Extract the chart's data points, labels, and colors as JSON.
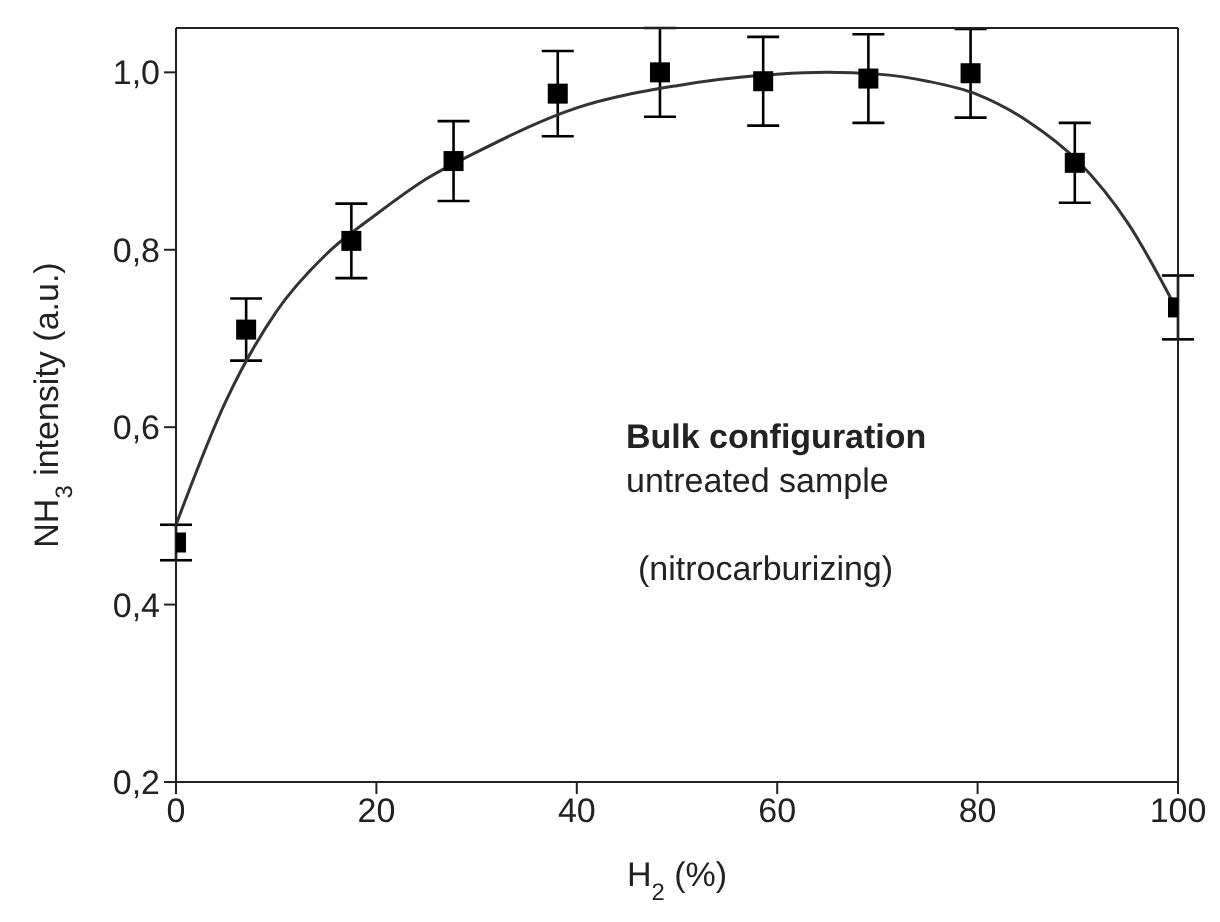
{
  "chart_data": {
    "type": "scatter",
    "xlabel": "H$_{2}$ (%)",
    "ylabel": "NH$_{3}$ intensity (a.u.)",
    "annotations": [
      "Bulk configuration",
      "untreated sample",
      "(nitrocarburizing)"
    ],
    "xlim": [
      0,
      100
    ],
    "xticks": [
      0,
      20,
      40,
      60,
      80,
      100
    ],
    "ylim": [
      0.2,
      1.05
    ],
    "yticks": [
      {
        "value": 0.2,
        "label": "0,2"
      },
      {
        "value": 0.4,
        "label": "0,4"
      },
      {
        "value": 0.6,
        "label": "0,6"
      },
      {
        "value": 0.8,
        "label": "0,8"
      },
      {
        "value": 1.0,
        "label": "1,0"
      }
    ],
    "series": [
      {
        "marker": "square",
        "color": "#000000",
        "x": [
          0,
          7,
          17.5,
          27.7,
          38.1,
          48.3,
          58.6,
          69.1,
          79.3,
          89.7,
          100
        ],
        "values": [
          0.47,
          0.71,
          0.81,
          0.9,
          0.976,
          1.0,
          0.99,
          0.993,
          0.999,
          0.898,
          0.735
        ],
        "errors": [
          0.02,
          0.035,
          0.042,
          0.045,
          0.048,
          0.05,
          0.05,
          0.05,
          0.05,
          0.045,
          0.036
        ]
      },
      {
        "type": "line",
        "color": "#333333",
        "x": [
          0,
          5,
          10,
          15,
          20,
          25,
          30,
          40,
          50,
          60,
          65,
          70,
          75,
          80,
          85,
          90,
          95,
          100
        ],
        "values": [
          0.49,
          0.63,
          0.73,
          0.795,
          0.84,
          0.88,
          0.91,
          0.96,
          0.985,
          0.998,
          1.0,
          0.998,
          0.99,
          0.975,
          0.945,
          0.9,
          0.83,
          0.73
        ]
      }
    ]
  }
}
